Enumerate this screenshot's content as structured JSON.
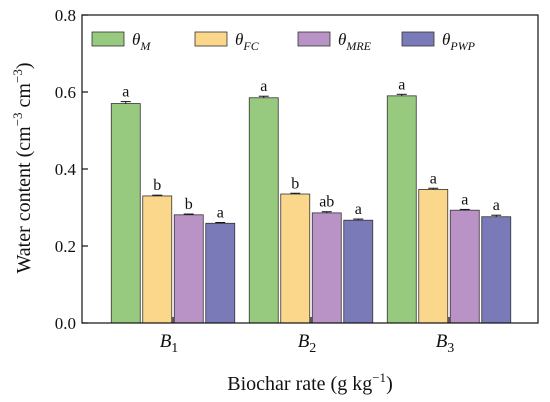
{
  "chart_data": {
    "type": "bar",
    "categories": [
      {
        "main": "B",
        "sub": "1"
      },
      {
        "main": "B",
        "sub": "2"
      },
      {
        "main": "B",
        "sub": "3"
      }
    ],
    "series": [
      {
        "name": {
          "main": "θ",
          "sub": "M"
        },
        "color": "#97c97f",
        "values": [
          0.57,
          0.585,
          0.59
        ],
        "errors": [
          0.005,
          0.004,
          0.004
        ],
        "labels": [
          "a",
          "a",
          "a"
        ]
      },
      {
        "name": {
          "main": "θ",
          "sub": "FC"
        },
        "color": "#fad78a",
        "values": [
          0.33,
          0.335,
          0.347
        ],
        "errors": [
          0.002,
          0.002,
          0.003
        ],
        "labels": [
          "b",
          "b",
          "a"
        ]
      },
      {
        "name": {
          "main": "θ",
          "sub": "MRE"
        },
        "color": "#b993c6",
        "values": [
          0.281,
          0.286,
          0.293
        ],
        "errors": [
          0.002,
          0.003,
          0.002
        ],
        "labels": [
          "b",
          "ab",
          "a"
        ]
      },
      {
        "name": {
          "main": "θ",
          "sub": "PWP"
        },
        "color": "#7b7ab8",
        "values": [
          0.259,
          0.267,
          0.276
        ],
        "errors": [
          0.002,
          0.003,
          0.004
        ],
        "labels": [
          "a",
          "a",
          "a"
        ]
      }
    ],
    "xlabel": {
      "main": "Biochar rate (g kg",
      "sup": "−1",
      "tail": ")"
    },
    "ylabel": {
      "main": "Water content (cm",
      "sup1": "−3",
      "mid": " cm",
      "sup2": "−3",
      "tail": ")"
    },
    "ylim": [
      0.0,
      0.8
    ],
    "yticks": [
      0.0,
      0.2,
      0.4,
      0.6,
      0.8
    ],
    "ytick_labels": [
      "0.0",
      "0.2",
      "0.4",
      "0.6",
      "0.8"
    ],
    "legend_position": "top",
    "grid": false
  }
}
